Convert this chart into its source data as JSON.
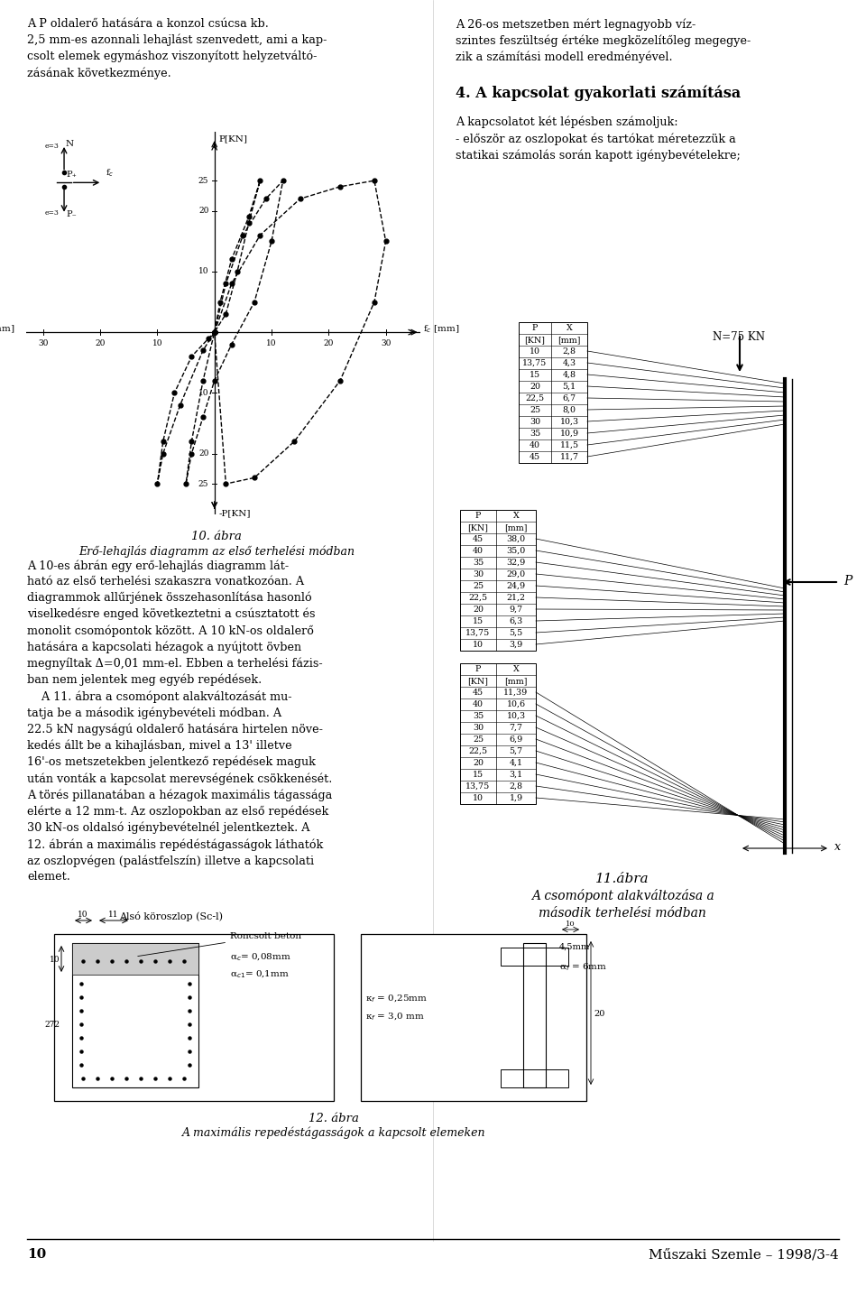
{
  "page_num": "10",
  "journal_name": "Műszaki Szemle – 1998/3-4",
  "col1_top": "A P oldalerő hatására a konzol csúcsa kb.\n2,5 mm-es azonnali lehajlást szenvedett, ami a kap-\ncsolt elemek egymáshoz viszonyított helyzetváltó-\nzásának következménye.",
  "col2_top": "A 26-os metszetben mért legnagyobb víz-\nszintes feszültség értéke megközelítőleg megegye-\nzik a számítási modell eredményével.",
  "sec4_title": "4. A kapcsolat gyakorlati számítása",
  "sec4_body": "A kapcsolatot két lépésben számoljuk:\n- először az oszlopokat és tartókat méretezzük a\nstatikai számolás során kapott igénybevételekre;",
  "fig10_cap1": "10. ábra",
  "fig10_cap2": "Erő-lehajlás diagramm az első terhelési módban",
  "fig11_cap1": "11.ábra",
  "fig11_cap2": "A csomópont alakváltozása a\nmásodik terhelési módban",
  "fig12_cap1": "12. ábra",
  "fig12_cap2": "A maximális repedéstágasságok a kapcsolt elemeken",
  "body_left": "A 10-es ábrán egy erő-lehajlás diagramm lát-\nható az első terhelési szakaszra vonatkozóan. A\ndiagrammok allűrjének összehasonlítása hasonló\nviselkedésre enged következtetni a csúsztatott és\nmonolit csomópontok között. A 10 kN-os oldalerő\nhatására a kapcsolati hézagok a nyújtott övben\nmegnyíltak Δ=0,01 mm-el. Ebben a terhelési fázis-\nban nem jelentek meg egyéb repédések.\n    A 11. ábra a csomópont alakváltozását mu-\ntatja be a második igénybevételi módban. A\n22.5 kN nagyságú oldalerő hatására hirtelen növe-\nkedés állt be a kihajlásban, mivel a 13' illetve\n16'-os metszetekben jelentkező repédések maguk\nután vonták a kapcsolat merevségének csökkenését.\nA törés pillanatában a hézagok maximális tágassága\nelérte a 12 mm-t. Az oszlopokban az első repédések\n30 kN-os oldalsó igénybevételnél jelentkeztek. A\n12. ábrán a maximális repédéstágasságok láthatók\naz oszlopvégen (palástfelszín) illetve a kapcsolati\nelemet.",
  "table1": [
    [
      "P",
      "X"
    ],
    [
      "[KN]",
      "[mm]"
    ],
    [
      "10",
      "2,8"
    ],
    [
      "13,75",
      "4,3"
    ],
    [
      "15",
      "4,8"
    ],
    [
      "20",
      "5,1"
    ],
    [
      "22,5",
      "6,7"
    ],
    [
      "25",
      "8,0"
    ],
    [
      "30",
      "10,3"
    ],
    [
      "35",
      "10,9"
    ],
    [
      "40",
      "11,5"
    ],
    [
      "45",
      "11,7"
    ]
  ],
  "table2": [
    [
      "P",
      "X"
    ],
    [
      "[KN]",
      "[mm]"
    ],
    [
      "45",
      "38,0"
    ],
    [
      "40",
      "35,0"
    ],
    [
      "35",
      "32,9"
    ],
    [
      "30",
      "29,0"
    ],
    [
      "25",
      "24,9"
    ],
    [
      "22,5",
      "21,2"
    ],
    [
      "20",
      "9,7"
    ],
    [
      "15",
      "6,3"
    ],
    [
      "13,75",
      "5,5"
    ],
    [
      "10",
      "3,9"
    ]
  ],
  "table3": [
    [
      "P",
      "X"
    ],
    [
      "[KN]",
      "[mm]"
    ],
    [
      "45",
      "11,39"
    ],
    [
      "40",
      "10,6"
    ],
    [
      "35",
      "10,3"
    ],
    [
      "30",
      "7,7"
    ],
    [
      "25",
      "6,9"
    ],
    [
      "22,5",
      "5,7"
    ],
    [
      "20",
      "4,1"
    ],
    [
      "15",
      "3,1"
    ],
    [
      "13,75",
      "2,8"
    ],
    [
      "10",
      "1,9"
    ]
  ]
}
